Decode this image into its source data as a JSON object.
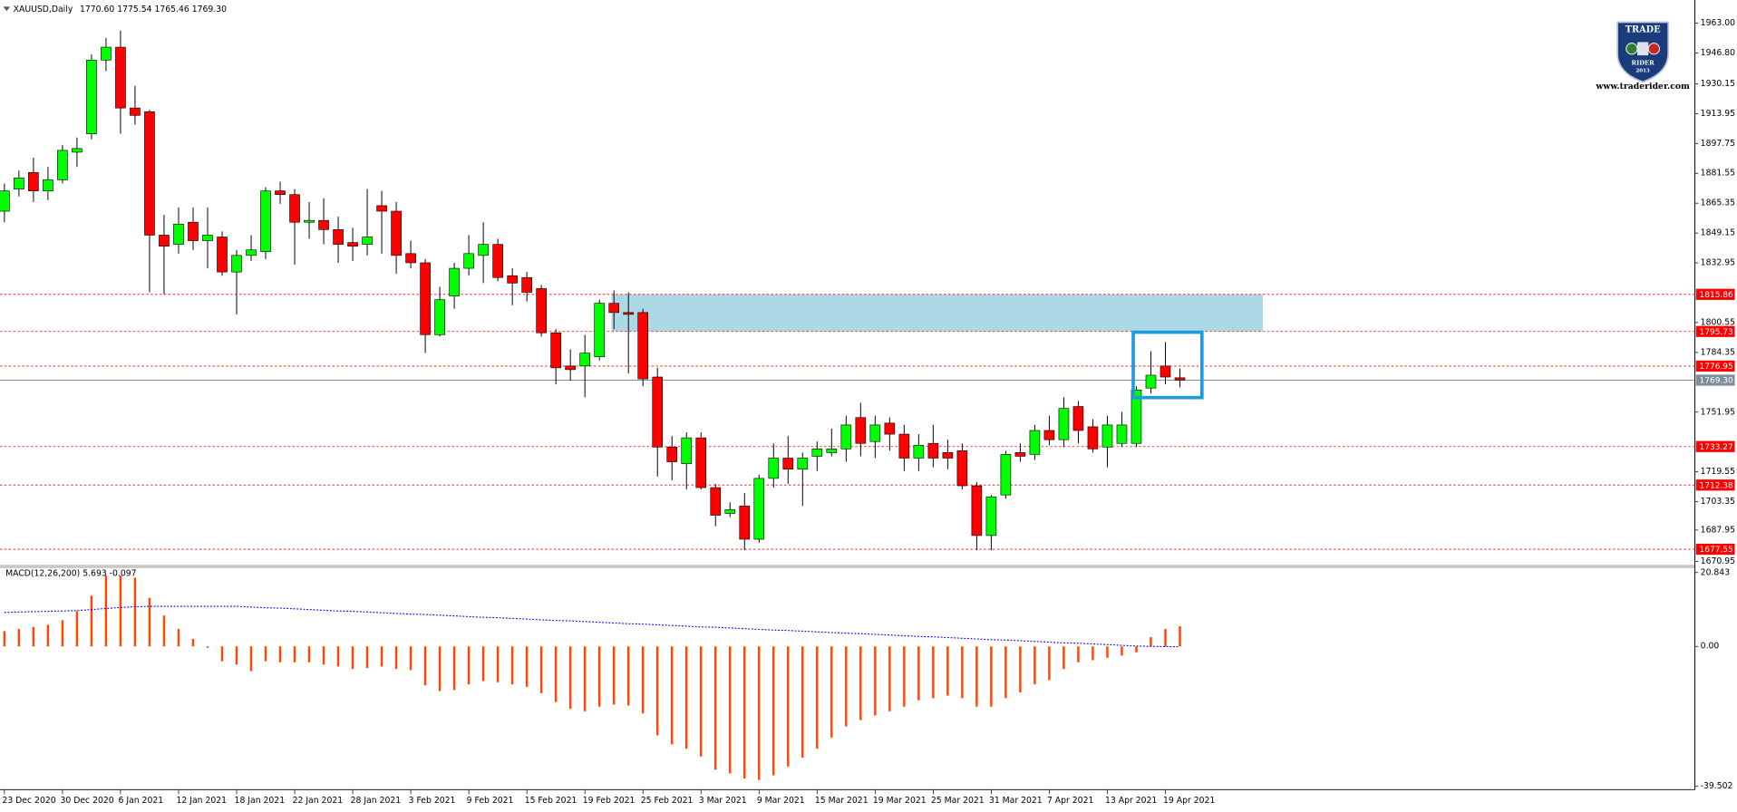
{
  "chart_data": [
    {
      "type": "candlestick",
      "title": "XAUUSD,Daily",
      "subtitle": "1770.60 1775.54 1765.46 1769.30",
      "categories": [
        "23 Dec 2020",
        null,
        null,
        null,
        "30 Dec 2020",
        null,
        null,
        null,
        "6 Jan 2021",
        null,
        null,
        null,
        "12 Jan 2021",
        null,
        null,
        null,
        "18 Jan 2021",
        null,
        null,
        null,
        "22 Jan 2021",
        null,
        null,
        null,
        "28 Jan 2021",
        null,
        null,
        null,
        "3 Feb 2021",
        null,
        null,
        null,
        "9 Feb 2021",
        null,
        null,
        null,
        "15 Feb 2021",
        null,
        null,
        null,
        "19 Feb 2021",
        null,
        null,
        null,
        "25 Feb 2021",
        null,
        null,
        null,
        "3 Mar 2021",
        null,
        null,
        null,
        "9 Mar 2021",
        null,
        null,
        null,
        "15 Mar 2021",
        null,
        null,
        null,
        "19 Mar 2021",
        null,
        null,
        null,
        "25 Mar 2021",
        null,
        null,
        null,
        "31 Mar 2021",
        null,
        null,
        null,
        "7 Apr 2021",
        null,
        null,
        null,
        "13 Apr 2021",
        null,
        null,
        null,
        "19 Apr 2021",
        null
      ],
      "open": [
        1861,
        1873,
        1882,
        1872,
        1878,
        1893,
        1903,
        1943,
        1950,
        1917,
        1915,
        1848,
        1843,
        1855,
        1845,
        1847,
        1828,
        1837,
        1839,
        1872,
        1870,
        1855,
        1856,
        1851,
        1844,
        1843,
        1864,
        1861,
        1838,
        1833,
        1794,
        1815,
        1830,
        1837,
        1843,
        1826,
        1825,
        1819,
        1795,
        1777,
        1777,
        1782,
        1811,
        1806,
        1806,
        1771,
        1733,
        1724,
        1738,
        1711,
        1697,
        1701,
        1683,
        1716,
        1727,
        1721,
        1728,
        1730,
        1732,
        1749,
        1736,
        1746,
        1740,
        1727,
        1735,
        1730,
        1731,
        1712,
        1685,
        1707,
        1730,
        1729,
        1742,
        1737,
        1755,
        1744,
        1733,
        1735,
        1735,
        1765,
        1777,
        1770.6
      ],
      "high": [
        1876,
        1883,
        1890,
        1885,
        1897,
        1901,
        1946,
        1955,
        1959,
        1929,
        1916,
        1859,
        1863,
        1863,
        1863,
        1850,
        1840,
        1848,
        1874,
        1877,
        1873,
        1866,
        1868,
        1858,
        1852,
        1873,
        1872,
        1866,
        1845,
        1835,
        1820,
        1833,
        1848,
        1855,
        1846,
        1830,
        1828,
        1821,
        1797,
        1786,
        1794,
        1813,
        1818,
        1817,
        1808,
        1776,
        1739,
        1741,
        1741,
        1713,
        1703,
        1708,
        1718,
        1735,
        1739,
        1730,
        1736,
        1743,
        1750,
        1757,
        1750,
        1749,
        1745,
        1740,
        1745,
        1737,
        1735,
        1714,
        1707,
        1731,
        1735,
        1745,
        1750,
        1760,
        1758,
        1748,
        1750,
        1752,
        1766,
        1785,
        1790,
        1775.54
      ],
      "low": [
        1855,
        1869,
        1866,
        1867,
        1876,
        1885,
        1900,
        1937,
        1903,
        1908,
        1817,
        1816,
        1838,
        1840,
        1830,
        1826,
        1805,
        1834,
        1835,
        1865,
        1832,
        1846,
        1843,
        1833,
        1834,
        1837,
        1838,
        1827,
        1830,
        1784,
        1793,
        1808,
        1826,
        1822,
        1823,
        1810,
        1812,
        1793,
        1767,
        1769,
        1760,
        1780,
        1797,
        1773,
        1766,
        1717,
        1715,
        1710,
        1710,
        1690,
        1695,
        1677,
        1681,
        1711,
        1713,
        1701,
        1720,
        1728,
        1725,
        1728,
        1727,
        1731,
        1720,
        1720,
        1722,
        1721,
        1710,
        1677,
        1677,
        1705,
        1725,
        1726,
        1734,
        1733,
        1735,
        1730,
        1722,
        1733,
        1733,
        1762,
        1767,
        1765.46
      ],
      "close": [
        1872,
        1879,
        1872,
        1878,
        1894,
        1895,
        1943,
        1950,
        1917,
        1913,
        1848,
        1842,
        1854,
        1845,
        1848,
        1828,
        1837,
        1840,
        1872,
        1870,
        1855,
        1856,
        1851,
        1843,
        1842,
        1847,
        1861,
        1837,
        1833,
        1794,
        1813,
        1830,
        1838,
        1843,
        1825,
        1822,
        1817,
        1795,
        1776,
        1775,
        1784,
        1811,
        1806,
        1805,
        1770,
        1733,
        1725,
        1738,
        1711,
        1696,
        1699,
        1683,
        1716,
        1727,
        1721,
        1727,
        1732,
        1732,
        1745,
        1735,
        1745,
        1740,
        1727,
        1734,
        1727,
        1727,
        1712,
        1685,
        1706,
        1729,
        1728,
        1742,
        1737,
        1754,
        1742,
        1732,
        1745,
        1745,
        1764,
        1772,
        1771,
        1769.3
      ],
      "colors": {
        "up": "#00ff00",
        "down": "#ff0000",
        "wick": "#000000"
      },
      "ylim": [
        1669.1,
        1975.6
      ],
      "yticks": [
        {
          "value": 1963.0,
          "label": "1963.00"
        },
        {
          "value": 1946.8,
          "label": "1946.80"
        },
        {
          "value": 1930.15,
          "label": "1930.15"
        },
        {
          "value": 1913.95,
          "label": "1913.95"
        },
        {
          "value": 1897.75,
          "label": "1897.75"
        },
        {
          "value": 1881.55,
          "label": "1881.55"
        },
        {
          "value": 1865.35,
          "label": "1865.35"
        },
        {
          "value": 1849.15,
          "label": "1849.15"
        },
        {
          "value": 1832.95,
          "label": "1832.95"
        },
        {
          "value": 1800.55,
          "label": "1800.55"
        },
        {
          "value": 1784.35,
          "label": "1784.35"
        },
        {
          "value": 1751.95,
          "label": "1751.95"
        },
        {
          "value": 1719.55,
          "label": "1719.55"
        },
        {
          "value": 1703.35,
          "label": "1703.35"
        },
        {
          "value": 1687.95,
          "label": "1687.95"
        },
        {
          "value": 1670.95,
          "label": "1670.95"
        }
      ],
      "levels": [
        {
          "value": 1815.86,
          "label": "1815.86",
          "color": "#ff0000"
        },
        {
          "value": 1795.73,
          "label": "1795.73",
          "color": "#ff0000"
        },
        {
          "value": 1776.95,
          "label": "1776.95",
          "color": "#ff0000"
        },
        {
          "value": 1733.27,
          "label": "1733.27",
          "color": "#ff0000"
        },
        {
          "value": 1712.38,
          "label": "1712.38",
          "color": "#ff0000"
        },
        {
          "value": 1677.55,
          "label": "1677.55",
          "color": "#ff0000"
        }
      ],
      "current_price": {
        "value": 1769.3,
        "label": "1769.30",
        "color": "#7f8c99"
      },
      "zone": {
        "high": 1815.86,
        "low": 1795.73,
        "color": "#add8e6"
      },
      "grid": false
    },
    {
      "type": "macd",
      "title": "MACD(12,26,200) 5.693 -0.097",
      "series": [
        {
          "color": "#ff4500",
          "style": "histogram",
          "values": [
            4.3,
            4.9,
            5.5,
            6.1,
            7.4,
            9.9,
            14.3,
            20,
            20,
            19.4,
            13.7,
            8.7,
            4.9,
            2.1,
            -0.4,
            -4.2,
            -5.1,
            -7,
            -4.2,
            -4.5,
            -4.5,
            -4.5,
            -5.1,
            -5.7,
            -6.4,
            -6.1,
            -5.7,
            -6.4,
            -6.7,
            -11,
            -12.6,
            -12.3,
            -10.7,
            -9.8,
            -10.1,
            -10.7,
            -11.4,
            -13.2,
            -15.7,
            -17.6,
            -18.3,
            -17,
            -16.4,
            -16.7,
            -18.9,
            -25.1,
            -27.6,
            -28.9,
            -31.1,
            -34.8,
            -35.8,
            -37.3,
            -37.7,
            -36.4,
            -33.9,
            -31.4,
            -28.9,
            -25.7,
            -22.6,
            -20.8,
            -19.5,
            -18.3,
            -17,
            -15.2,
            -14.6,
            -13.9,
            -14.6,
            -17,
            -17,
            -14.6,
            -13,
            -10.7,
            -9.5,
            -6.4,
            -4.5,
            -3.9,
            -3.2,
            -2.6,
            -1.7,
            2.6,
            4.9,
            5.693
          ]
        },
        {
          "color": "#0000ff",
          "style": "dotted",
          "values": [
            9.6,
            9.7,
            9.8,
            9.9,
            10.0,
            10.1,
            10.4,
            10.7,
            11.0,
            11.2,
            11.3,
            11.3,
            11.3,
            11.3,
            11.3,
            11.3,
            11.3,
            11.1,
            10.9,
            10.8,
            10.6,
            10.4,
            10.2,
            10.0,
            9.9,
            9.7,
            9.5,
            9.3,
            9.1,
            9.0,
            8.8,
            8.6,
            8.4,
            8.2,
            8.1,
            7.9,
            7.7,
            7.5,
            7.3,
            7.2,
            7.0,
            6.8,
            6.6,
            6.4,
            6.3,
            6.1,
            5.9,
            5.7,
            5.5,
            5.4,
            5.2,
            5.0,
            4.8,
            4.6,
            4.5,
            4.3,
            4.1,
            3.9,
            3.7,
            3.6,
            3.4,
            3.2,
            3.0,
            2.8,
            2.7,
            2.5,
            2.3,
            2.1,
            1.9,
            1.8,
            1.6,
            1.4,
            1.2,
            1.0,
            0.9,
            0.7,
            0.5,
            0.3,
            0.1,
            0.0,
            -0.05,
            -0.097
          ]
        }
      ],
      "ylim": [
        -40.43,
        22.09
      ],
      "yticks": [
        {
          "value": 20.843,
          "label": "20.843"
        },
        {
          "value": 0,
          "label": "0.00"
        },
        {
          "value": -39.502,
          "label": "-39.502"
        }
      ]
    }
  ],
  "logo": {
    "top": "TRADE",
    "bottom": "RIDER",
    "year": "2013",
    "url": "www.traderider.com"
  }
}
